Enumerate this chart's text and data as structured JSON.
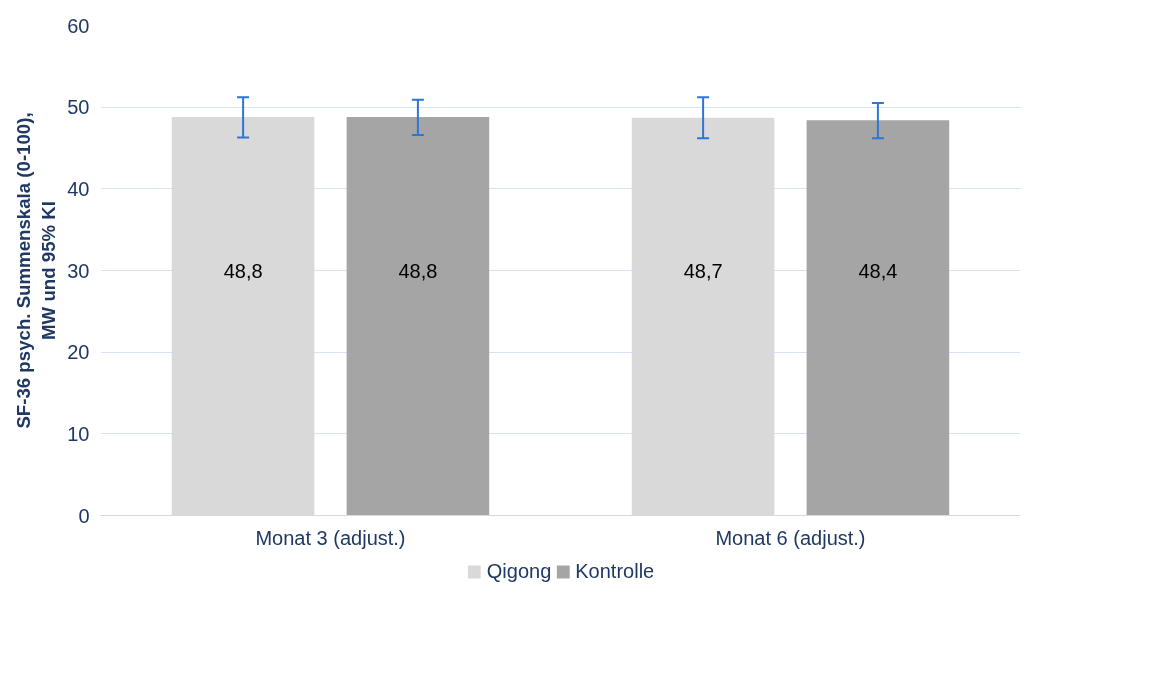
{
  "chart_data": {
    "type": "bar",
    "ylabel": "SF-36 psych. Summenskala (0-100),\nMW und 95% KI",
    "categories": [
      "Monat 3 (adjust.)",
      "Monat 6 (adjust.)"
    ],
    "series": [
      {
        "name": "Qigong",
        "color": "#d9d9d9",
        "values": [
          48.8,
          48.7
        ],
        "value_labels": [
          "48,8",
          "48,7"
        ],
        "errors": [
          [
            46.3,
            51.2
          ],
          [
            46.2,
            51.2
          ]
        ]
      },
      {
        "name": "Kontrolle",
        "color": "#a5a5a5",
        "values": [
          48.8,
          48.4
        ],
        "value_labels": [
          "48,8",
          "48,4"
        ],
        "errors": [
          [
            46.6,
            50.9
          ],
          [
            46.2,
            50.5
          ]
        ]
      }
    ],
    "ylim": [
      0,
      60
    ],
    "yticks": [
      0,
      10,
      20,
      30,
      40,
      50,
      60
    ],
    "grid": "y",
    "legend": "bottom"
  }
}
